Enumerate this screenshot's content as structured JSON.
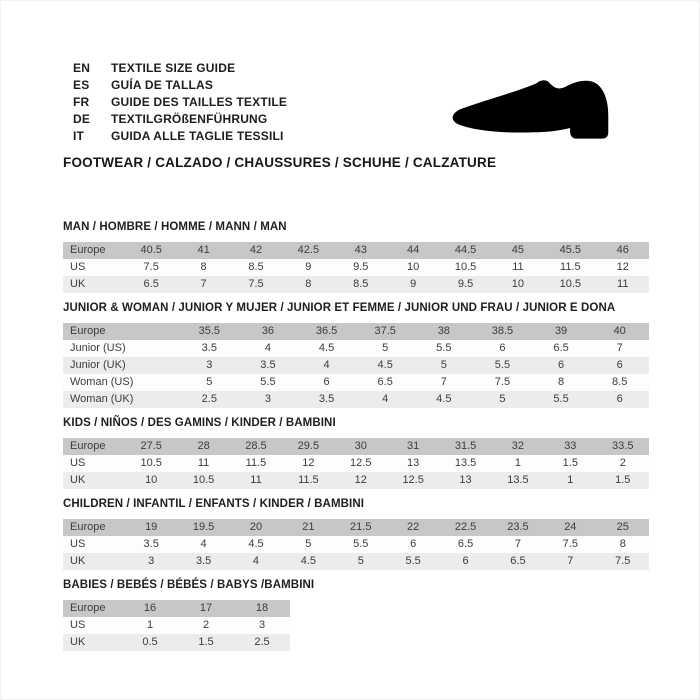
{
  "header": {
    "languages": [
      {
        "code": "EN",
        "text": "TEXTILE SIZE GUIDE"
      },
      {
        "code": "ES",
        "text": "GUÍA DE TALLAS"
      },
      {
        "code": "FR",
        "text": "GUIDE DES TAILLES TEXTILE"
      },
      {
        "code": "DE",
        "text": "TEXTILGRÖßENFÜHRUNG"
      },
      {
        "code": "IT",
        "text": "GUIDA ALLE TAGLIE TESSILI"
      }
    ],
    "category_line": "FOOTWEAR / CALZADO / CHAUSSURES / SCHUHE / CALZATURE",
    "shoe_icon": "dress-shoe-silhouette"
  },
  "colors": {
    "table_header_bg": "#c7c7c7",
    "row_light_bg": "#ececec",
    "row_white_bg": "#fdfdfd",
    "text": "#3c3c3c",
    "title_text": "#1f1f1f",
    "shoe_fill": "#000000"
  },
  "chart_data": {
    "type": "table",
    "note": "footwear size conversion tables"
  },
  "tables": [
    {
      "title": "MAN / HOMBRE / HOMME / MANN / MAN",
      "rows": [
        {
          "label": "Europe",
          "values": [
            "40.5",
            "41",
            "42",
            "42.5",
            "43",
            "44",
            "44.5",
            "45",
            "45.5",
            "46"
          ]
        },
        {
          "label": "US",
          "values": [
            "7.5",
            "8",
            "8.5",
            "9",
            "9.5",
            "10",
            "10.5",
            "11",
            "11.5",
            "12"
          ]
        },
        {
          "label": "UK",
          "values": [
            "6.5",
            "7",
            "7.5",
            "8",
            "8.5",
            "9",
            "9.5",
            "10",
            "10.5",
            "11"
          ]
        }
      ]
    },
    {
      "title": "JUNIOR & WOMAN / JUNIOR Y MUJER / JUNIOR ET FEMME / JUNIOR UND FRAU / JUNIOR E DONA",
      "rows": [
        {
          "label": "Europe",
          "values": [
            "35.5",
            "36",
            "36.5",
            "37.5",
            "38",
            "38.5",
            "39",
            "40"
          ]
        },
        {
          "label": "Junior (US)",
          "values": [
            "3.5",
            "4",
            "4.5",
            "5",
            "5.5",
            "6",
            "6.5",
            "7"
          ]
        },
        {
          "label": "Junior (UK)",
          "values": [
            "3",
            "3.5",
            "4",
            "4.5",
            "5",
            "5.5",
            "6",
            "6"
          ]
        },
        {
          "label": "Woman (US)",
          "values": [
            "5",
            "5.5",
            "6",
            "6.5",
            "7",
            "7.5",
            "8",
            "8.5"
          ]
        },
        {
          "label": "Woman (UK)",
          "values": [
            "2.5",
            "3",
            "3.5",
            "4",
            "4.5",
            "5",
            "5.5",
            "6"
          ]
        }
      ]
    },
    {
      "title": "KIDS / NIÑOS / DES GAMINS / KINDER / BAMBINI",
      "rows": [
        {
          "label": "Europe",
          "values": [
            "27.5",
            "28",
            "28.5",
            "29.5",
            "30",
            "31",
            "31.5",
            "32",
            "33",
            "33.5"
          ]
        },
        {
          "label": "US",
          "values": [
            "10.5",
            "11",
            "11.5",
            "12",
            "12.5",
            "13",
            "13.5",
            "1",
            "1.5",
            "2"
          ]
        },
        {
          "label": "UK",
          "values": [
            "10",
            "10.5",
            "11",
            "11.5",
            "12",
            "12.5",
            "13",
            "13.5",
            "1",
            "1.5"
          ]
        }
      ]
    },
    {
      "title": "CHILDREN / INFANTIL / ENFANTS / KINDER / BAMBINI",
      "rows": [
        {
          "label": "Europe",
          "values": [
            "19",
            "19.5",
            "20",
            "21",
            "21.5",
            "22",
            "22.5",
            "23.5",
            "24",
            "25"
          ]
        },
        {
          "label": "US",
          "values": [
            "3.5",
            "4",
            "4.5",
            "5",
            "5.5",
            "6",
            "6.5",
            "7",
            "7.5",
            "8"
          ]
        },
        {
          "label": "UK",
          "values": [
            "3",
            "3.5",
            "4",
            "4.5",
            "5",
            "5.5",
            "6",
            "6.5",
            "7",
            "7.5"
          ]
        }
      ]
    },
    {
      "title": "BABIES  / BEBÉS / BÉBÉS / BABYS /BAMBINI",
      "rows": [
        {
          "label": "Europe",
          "values": [
            "16",
            "17",
            "18"
          ]
        },
        {
          "label": "US",
          "values": [
            "1",
            "2",
            "3"
          ]
        },
        {
          "label": "UK",
          "values": [
            "0.5",
            "1.5",
            "2.5"
          ]
        }
      ]
    }
  ]
}
